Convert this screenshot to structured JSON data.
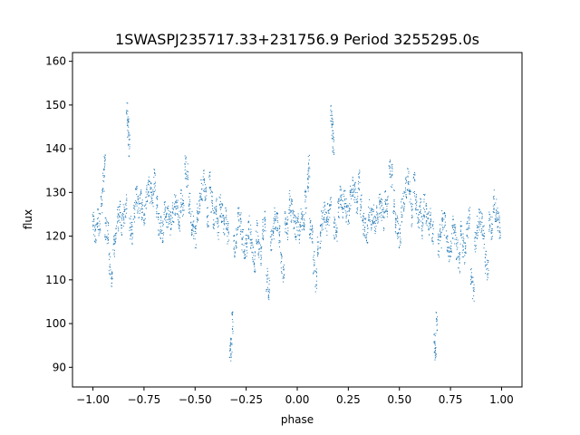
{
  "chart_data": {
    "type": "scatter",
    "title": "1SWASPJ235717.33+231756.9 Period 3255295.0s",
    "xlabel": "phase",
    "ylabel": "flux",
    "xlim": [
      -1.1,
      1.1
    ],
    "ylim": [
      85.5,
      162
    ],
    "xticks": [
      -1.0,
      -0.75,
      -0.5,
      -0.25,
      0.0,
      0.25,
      0.5,
      0.75,
      1.0
    ],
    "xtick_labels": [
      "−1.00",
      "−0.75",
      "−0.50",
      "−0.25",
      "0.00",
      "0.25",
      "0.50",
      "0.75",
      "1.00"
    ],
    "yticks": [
      90,
      100,
      110,
      120,
      130,
      140,
      150,
      160
    ],
    "ytick_labels": [
      "90",
      "100",
      "110",
      "120",
      "130",
      "140",
      "150",
      "160"
    ],
    "grid": false,
    "point_color": "#1f77b4",
    "period_phase_repeat": true,
    "series": [
      {
        "points_phase_flux": [
          [
            0.02,
            124
          ],
          [
            0.03,
            123
          ],
          [
            0.04,
            128
          ],
          [
            0.05,
            133
          ],
          [
            0.055,
            136
          ],
          [
            0.06,
            122
          ],
          [
            0.07,
            121
          ],
          [
            0.08,
            114
          ],
          [
            0.09,
            110
          ],
          [
            0.1,
            118
          ],
          [
            0.11,
            120
          ],
          [
            0.12,
            124
          ],
          [
            0.13,
            126
          ],
          [
            0.14,
            123
          ],
          [
            0.15,
            125
          ],
          [
            0.16,
            127
          ],
          [
            0.165,
            148
          ],
          [
            0.17,
            145
          ],
          [
            0.175,
            141
          ],
          [
            0.18,
            122
          ],
          [
            0.19,
            121
          ],
          [
            0.2,
            126
          ],
          [
            0.21,
            129
          ],
          [
            0.22,
            127
          ],
          [
            0.23,
            128
          ],
          [
            0.24,
            126
          ],
          [
            0.25,
            125
          ],
          [
            0.26,
            129
          ],
          [
            0.27,
            131
          ],
          [
            0.28,
            130
          ],
          [
            0.29,
            128
          ],
          [
            0.3,
            133
          ],
          [
            0.31,
            127
          ],
          [
            0.32,
            123
          ],
          [
            0.33,
            122
          ],
          [
            0.34,
            121
          ],
          [
            0.35,
            126
          ],
          [
            0.36,
            124
          ],
          [
            0.37,
            125
          ],
          [
            0.38,
            123
          ],
          [
            0.39,
            125
          ],
          [
            0.4,
            127
          ],
          [
            0.41,
            126
          ],
          [
            0.42,
            124
          ],
          [
            0.43,
            128
          ],
          [
            0.44,
            127
          ],
          [
            0.45,
            136
          ],
          [
            0.46,
            134
          ],
          [
            0.47,
            128
          ],
          [
            0.48,
            123
          ],
          [
            0.49,
            122
          ],
          [
            0.5,
            120
          ],
          [
            0.51,
            126
          ],
          [
            0.52,
            128
          ],
          [
            0.53,
            131
          ],
          [
            0.54,
            133
          ],
          [
            0.55,
            130
          ],
          [
            0.56,
            125
          ],
          [
            0.57,
            132
          ],
          [
            0.58,
            128
          ],
          [
            0.59,
            124
          ],
          [
            0.6,
            126
          ],
          [
            0.61,
            122
          ],
          [
            0.62,
            127
          ],
          [
            0.63,
            125
          ],
          [
            0.64,
            123
          ],
          [
            0.65,
            124
          ],
          [
            0.66,
            121
          ],
          [
            0.67,
            95
          ],
          [
            0.675,
            94
          ],
          [
            0.68,
            100
          ],
          [
            0.69,
            118
          ],
          [
            0.7,
            120
          ],
          [
            0.71,
            124
          ],
          [
            0.72,
            123
          ],
          [
            0.73,
            119
          ],
          [
            0.74,
            116
          ],
          [
            0.75,
            118
          ],
          [
            0.76,
            122
          ],
          [
            0.77,
            120
          ],
          [
            0.78,
            117
          ],
          [
            0.79,
            114
          ],
          [
            0.8,
            121
          ],
          [
            0.81,
            118
          ],
          [
            0.82,
            116
          ],
          [
            0.83,
            122
          ],
          [
            0.84,
            124
          ],
          [
            0.85,
            110
          ],
          [
            0.86,
            108
          ],
          [
            0.87,
            119
          ],
          [
            0.88,
            122
          ],
          [
            0.89,
            124
          ],
          [
            0.9,
            123
          ],
          [
            0.91,
            120
          ],
          [
            0.92,
            114
          ],
          [
            0.93,
            112
          ],
          [
            0.94,
            123
          ],
          [
            0.95,
            122
          ],
          [
            0.96,
            128
          ],
          [
            0.97,
            126
          ],
          [
            0.98,
            124
          ],
          [
            0.99,
            122
          ],
          [
            0.0,
            123
          ],
          [
            0.01,
            121
          ]
        ]
      }
    ]
  }
}
